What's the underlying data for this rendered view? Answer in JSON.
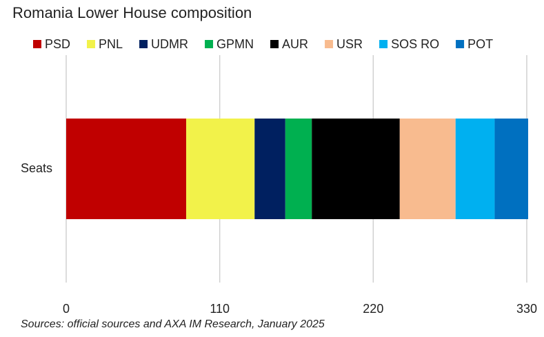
{
  "chart_data": {
    "type": "stacked-bar-horizontal",
    "title": "Romania Lower House composition",
    "categories": [
      "Seats"
    ],
    "series": [
      {
        "name": "PSD",
        "color": "#c00000",
        "values": [
          86
        ]
      },
      {
        "name": "PNL",
        "color": "#f2f24a",
        "values": [
          49
        ]
      },
      {
        "name": "UDMR",
        "color": "#002060",
        "values": [
          22
        ]
      },
      {
        "name": "GPMN",
        "color": "#00b050",
        "values": [
          19
        ]
      },
      {
        "name": "AUR",
        "color": "#000000",
        "values": [
          63
        ]
      },
      {
        "name": "USR",
        "color": "#f8bb8f",
        "values": [
          40
        ]
      },
      {
        "name": "SOS RO",
        "color": "#00b0f0",
        "values": [
          28
        ]
      },
      {
        "name": "POT",
        "color": "#0070c0",
        "values": [
          24
        ]
      }
    ],
    "xlim": [
      0,
      330
    ],
    "xticks": [
      0,
      110,
      220,
      330
    ],
    "grid": true,
    "source": "Sources: official sources and AXA IM Research, January 2025"
  }
}
